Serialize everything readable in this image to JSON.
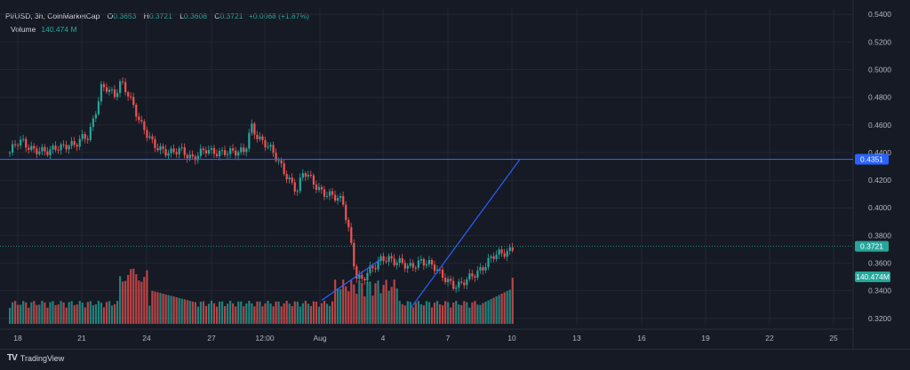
{
  "header": {
    "symbol": "PI/USD, 3h, CoinMarketCap",
    "open_label": "O",
    "open": "0.3653",
    "high_label": "H",
    "high": "0.3721",
    "low_label": "L",
    "low": "0.3608",
    "close_label": "C",
    "close": "0.3721",
    "change": "+0.0068 (+1.87%)",
    "volume_label": "Volume",
    "volume": "140.474 M"
  },
  "footer": {
    "brand": "TradingView"
  },
  "colors": {
    "up": "#26a69a",
    "down": "#ef5350",
    "line": "#2962ff",
    "bg": "#161a25",
    "grid": "#232632"
  },
  "chart_data": {
    "type": "candlestick",
    "y_ticks": [
      "0.5400",
      "0.5200",
      "0.5000",
      "0.4800",
      "0.4600",
      "0.4400",
      "0.4200",
      "0.4000",
      "0.3800",
      "0.3600",
      "0.3400",
      "0.3200"
    ],
    "x_ticks": [
      "18",
      "21",
      "24",
      "27",
      "12:00",
      "Aug",
      "4",
      "7",
      "10",
      "13",
      "16",
      "19",
      "22",
      "25"
    ],
    "ylim": [
      0.316,
      0.544
    ],
    "horizontal_line": {
      "value": 0.4351,
      "label": "0.4351"
    },
    "last_price": {
      "value": 0.3721,
      "label": "0.3721"
    },
    "volume_badge": "140.474M",
    "trendlines": [
      {
        "points": [
          [
            2.08,
            0.333
          ],
          [
            4.8,
            0.3625
          ]
        ]
      },
      {
        "points": [
          [
            6.25,
            0.328
          ],
          [
            11.3,
            0.4351
          ]
        ]
      }
    ],
    "close_series": [
      0.44,
      0.446,
      0.447,
      0.444,
      0.443,
      0.441,
      0.439,
      0.443,
      0.445,
      0.447,
      0.445,
      0.449,
      0.451,
      0.468,
      0.488,
      0.486,
      0.479,
      0.491,
      0.485,
      0.474,
      0.46,
      0.452,
      0.446,
      0.444,
      0.441,
      0.439,
      0.441,
      0.439,
      0.437,
      0.44,
      0.441,
      0.439,
      0.44,
      0.442,
      0.441,
      0.439,
      0.44,
      0.46,
      0.452,
      0.447,
      0.441,
      0.434,
      0.427,
      0.42,
      0.412,
      0.425,
      0.421,
      0.416,
      0.412,
      0.409,
      0.406,
      0.404,
      0.383,
      0.352,
      0.347,
      0.353,
      0.358,
      0.365,
      0.364,
      0.36,
      0.359,
      0.357,
      0.36,
      0.362,
      0.359,
      0.356,
      0.352,
      0.349,
      0.344,
      0.343,
      0.347,
      0.352,
      0.356,
      0.36,
      0.364,
      0.366,
      0.368,
      0.372
    ]
  }
}
